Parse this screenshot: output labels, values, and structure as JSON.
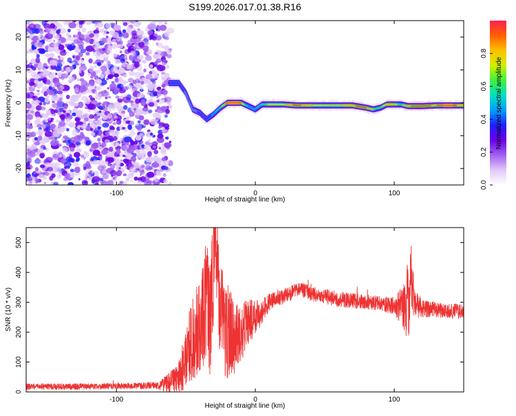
{
  "title": "S199.2026.017.01.38.R16",
  "colors": {
    "snr_line": "#ee3333",
    "colormap": [
      "#ffffff",
      "#e0c8f8",
      "#a060f0",
      "#6a00e6",
      "#2020ff",
      "#00a0ff",
      "#00e0c0",
      "#40f040",
      "#d0f000",
      "#ffc000",
      "#ff6000",
      "#ff2050"
    ]
  },
  "chart_data": [
    {
      "type": "heatmap",
      "title": "S199.2026.017.01.38.R16",
      "xlabel": "Height of straight line (km)",
      "ylabel": "Frequency (Hz)",
      "xlim": [
        -165,
        150
      ],
      "ylim": [
        -25,
        25
      ],
      "x_ticks": [
        -100,
        0,
        100
      ],
      "x_tick_labels": [
        "-100",
        "0",
        "100"
      ],
      "y_ticks": [
        20,
        10,
        0,
        -10,
        -20
      ],
      "y_tick_labels": [
        "20",
        "10",
        "0",
        "-10",
        "-20"
      ],
      "colorbar": {
        "label": "Normalized spectral amplitude",
        "range": [
          0,
          1
        ],
        "ticks": [
          0.0,
          0.2,
          0.4,
          0.6,
          0.8
        ],
        "tick_labels": [
          "0.0",
          "0.2",
          "0.4",
          "0.6",
          "0.8"
        ]
      },
      "noise_region_x": [
        -165,
        -62
      ],
      "ridge": {
        "x": [
          -62,
          -55,
          -50,
          -45,
          -40,
          -35,
          -30,
          -25,
          -20,
          -15,
          -10,
          -5,
          0,
          5,
          10,
          20,
          30,
          40,
          50,
          60,
          70,
          80,
          85,
          90,
          95,
          100,
          105,
          110,
          120,
          130,
          140,
          150
        ],
        "y": [
          6,
          6,
          3,
          -2,
          -3,
          -5,
          -3.5,
          -1.5,
          0,
          0,
          0,
          -1,
          -2,
          -0.5,
          -0.5,
          -0.5,
          -0.8,
          -0.8,
          -0.8,
          -0.8,
          -0.8,
          -1.5,
          -2,
          -1.5,
          -0.5,
          -0.5,
          -0.5,
          -1,
          -1,
          -0.8,
          -0.8,
          -0.8
        ],
        "amp": [
          0.3,
          0.35,
          0.2,
          0.15,
          0.25,
          0.3,
          0.45,
          0.6,
          0.9,
          0.95,
          0.9,
          0.5,
          0.45,
          0.6,
          0.7,
          0.75,
          0.9,
          0.8,
          0.7,
          0.75,
          0.85,
          0.9,
          0.7,
          0.6,
          0.8,
          0.8,
          0.6,
          0.85,
          0.9,
          0.85,
          0.95,
          0.8
        ]
      }
    },
    {
      "type": "line",
      "xlabel": "Height of straight line (km)",
      "ylabel": "SNR (10 * v/v)",
      "xlim": [
        -165,
        150
      ],
      "ylim": [
        0,
        550
      ],
      "x_ticks": [
        -100,
        0,
        100
      ],
      "x_tick_labels": [
        "-100",
        "0",
        "100"
      ],
      "y_ticks": [
        0,
        100,
        200,
        300,
        400,
        500
      ],
      "y_tick_labels": [
        "0",
        "100",
        "200",
        "300",
        "400",
        "500"
      ],
      "series": [
        {
          "name": "SNR",
          "x": [
            -165,
            -150,
            -130,
            -110,
            -90,
            -70,
            -55,
            -50,
            -45,
            -40,
            -38,
            -35,
            -33,
            -30,
            -29,
            -27,
            -25,
            -20,
            -15,
            -10,
            -5,
            0,
            5,
            10,
            15,
            20,
            25,
            30,
            35,
            40,
            50,
            60,
            70,
            80,
            90,
            100,
            105,
            108,
            110,
            112,
            115,
            120,
            130,
            140,
            150
          ],
          "y": [
            18,
            18,
            18,
            19,
            20,
            22,
            40,
            120,
            180,
            220,
            250,
            320,
            260,
            420,
            530,
            380,
            250,
            200,
            180,
            200,
            230,
            250,
            270,
            300,
            310,
            320,
            330,
            340,
            340,
            330,
            320,
            310,
            305,
            300,
            295,
            290,
            285,
            280,
            300,
            380,
            290,
            280,
            275,
            270,
            270
          ],
          "noise_amplitude": [
            10,
            10,
            10,
            10,
            10,
            12,
            60,
            100,
            140,
            160,
            180,
            200,
            220,
            200,
            180,
            200,
            200,
            160,
            120,
            100,
            80,
            60,
            40,
            30,
            25,
            25,
            25,
            25,
            25,
            25,
            25,
            25,
            25,
            25,
            25,
            30,
            60,
            90,
            150,
            120,
            50,
            30,
            25,
            25,
            25
          ]
        }
      ]
    }
  ]
}
